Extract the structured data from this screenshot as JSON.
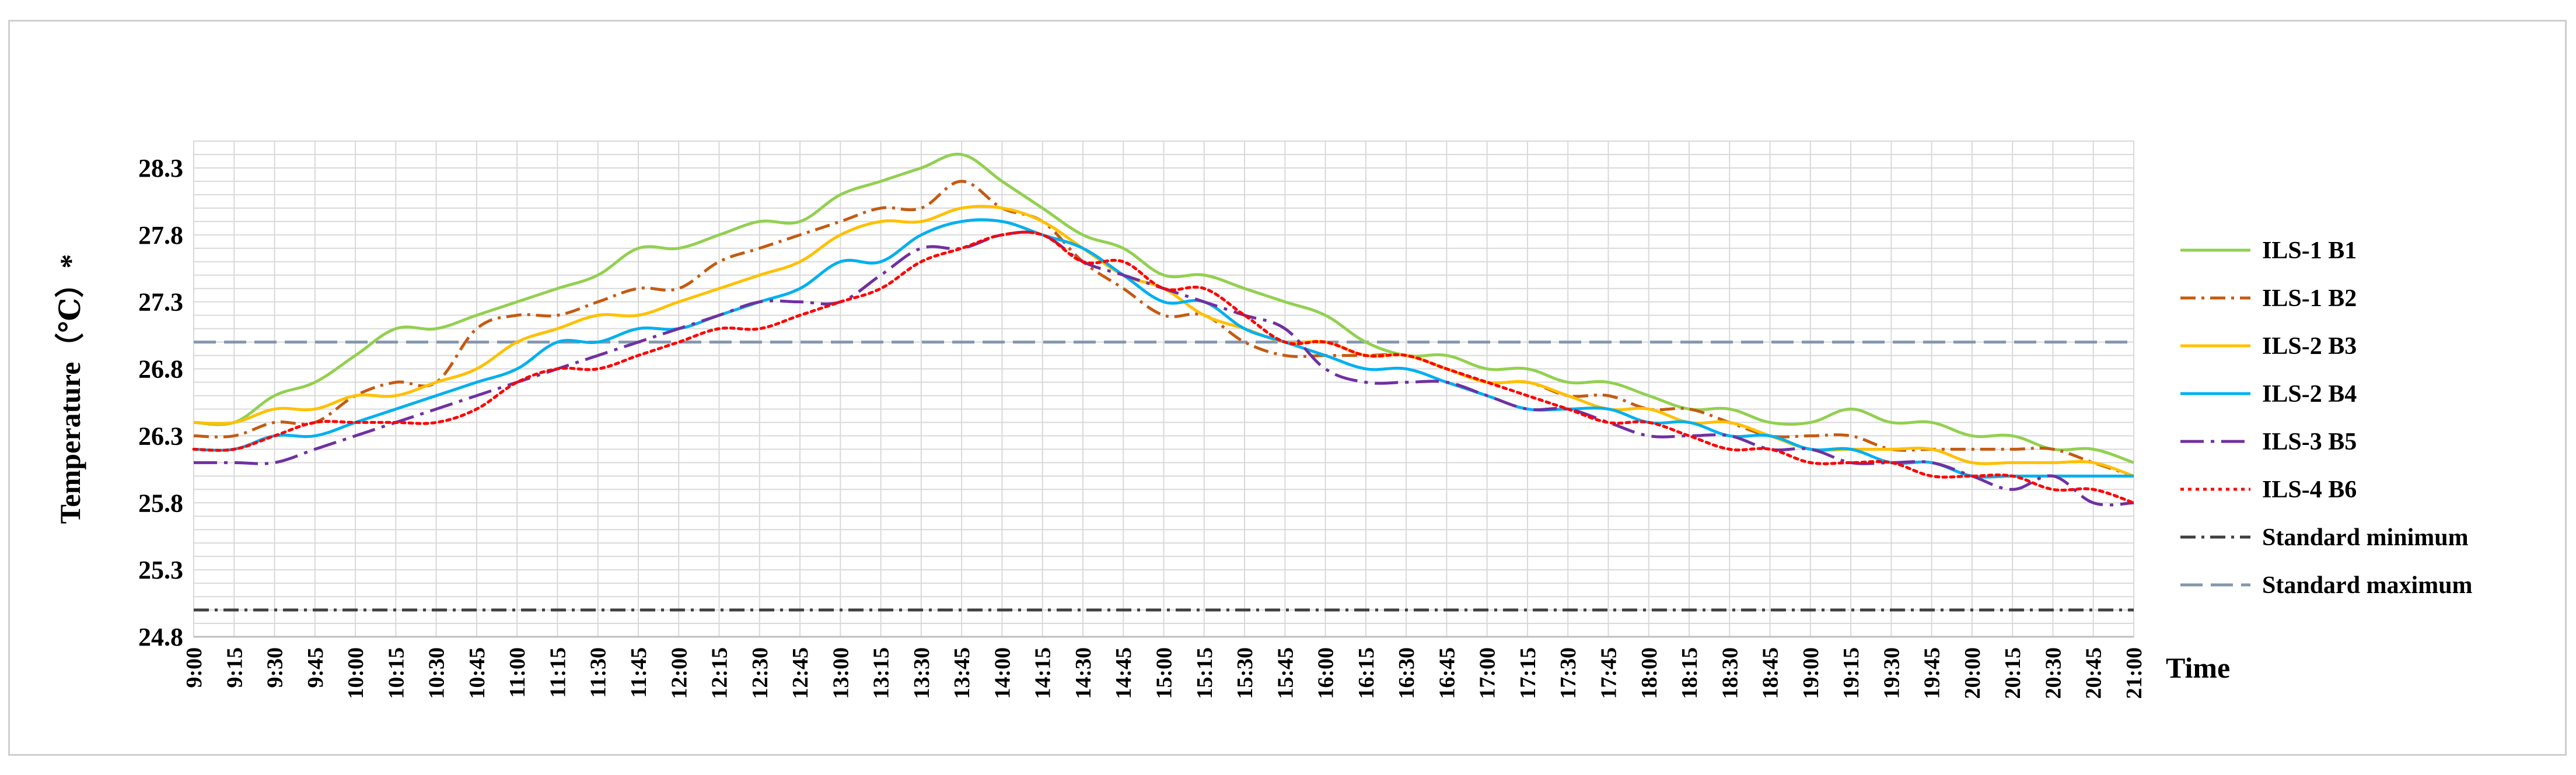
{
  "chart_data": {
    "type": "line",
    "title": "",
    "xlabel": "Time",
    "ylabel": "Temperature（℃）*",
    "ylim": [
      24.8,
      28.5
    ],
    "yticks": [
      "24.8",
      "25.3",
      "25.8",
      "26.3",
      "26.8",
      "27.3",
      "27.8",
      "28.3"
    ],
    "grid": true,
    "legend_position": "right",
    "categories": [
      "9:00",
      "9:15",
      "9:30",
      "9:45",
      "10:00",
      "10:15",
      "10:30",
      "10:45",
      "11:00",
      "11:15",
      "11:30",
      "11:45",
      "12:00",
      "12:15",
      "12:30",
      "12:45",
      "13:00",
      "13:15",
      "13:30",
      "13:45",
      "14:00",
      "14:15",
      "14:30",
      "14:45",
      "15:00",
      "15:15",
      "15:30",
      "15:45",
      "16:00",
      "16:15",
      "16:30",
      "16:45",
      "17:00",
      "17:15",
      "17:30",
      "17:45",
      "18:00",
      "18:15",
      "18:30",
      "18:45",
      "19:00",
      "19:15",
      "19:30",
      "19:45",
      "20:00",
      "20:15",
      "20:30",
      "20:45",
      "21:00"
    ],
    "series": [
      {
        "name": "ILS-1 B1",
        "color": "#92d050",
        "dash": "solid",
        "values": [
          26.4,
          26.4,
          26.6,
          26.7,
          26.9,
          27.1,
          27.1,
          27.2,
          27.3,
          27.4,
          27.5,
          27.7,
          27.7,
          27.8,
          27.9,
          27.9,
          28.1,
          28.2,
          28.3,
          28.4,
          28.2,
          28.0,
          27.8,
          27.7,
          27.5,
          27.5,
          27.4,
          27.3,
          27.2,
          27.0,
          26.9,
          26.9,
          26.8,
          26.8,
          26.7,
          26.7,
          26.6,
          26.5,
          26.5,
          26.4,
          26.4,
          26.5,
          26.4,
          26.4,
          26.3,
          26.3,
          26.2,
          26.2,
          26.1
        ]
      },
      {
        "name": "ILS-1 B2",
        "color": "#c55a11",
        "dash": "dashdot",
        "values": [
          26.3,
          26.3,
          26.4,
          26.4,
          26.6,
          26.7,
          26.7,
          27.1,
          27.2,
          27.2,
          27.3,
          27.4,
          27.4,
          27.6,
          27.7,
          27.8,
          27.9,
          28.0,
          28.0,
          28.2,
          28.0,
          27.9,
          27.6,
          27.4,
          27.2,
          27.2,
          27.0,
          26.9,
          26.9,
          26.9,
          26.9,
          26.8,
          26.7,
          26.7,
          26.6,
          26.6,
          26.5,
          26.5,
          26.4,
          26.3,
          26.3,
          26.3,
          26.2,
          26.2,
          26.2,
          26.2,
          26.2,
          26.1,
          26.0
        ]
      },
      {
        "name": "ILS-2 B3",
        "color": "#ffc000",
        "dash": "solid",
        "values": [
          26.4,
          26.4,
          26.5,
          26.5,
          26.6,
          26.6,
          26.7,
          26.8,
          27.0,
          27.1,
          27.2,
          27.2,
          27.3,
          27.4,
          27.5,
          27.6,
          27.8,
          27.9,
          27.9,
          28.0,
          28.0,
          27.9,
          27.7,
          27.5,
          27.4,
          27.2,
          27.1,
          27.0,
          27.0,
          26.9,
          26.9,
          26.8,
          26.7,
          26.7,
          26.6,
          26.5,
          26.5,
          26.4,
          26.4,
          26.3,
          26.2,
          26.2,
          26.2,
          26.2,
          26.1,
          26.1,
          26.1,
          26.1,
          26.0
        ]
      },
      {
        "name": "ILS-2 B4",
        "color": "#00b0f0",
        "dash": "solid",
        "values": [
          26.2,
          26.2,
          26.3,
          26.3,
          26.4,
          26.5,
          26.6,
          26.7,
          26.8,
          27.0,
          27.0,
          27.1,
          27.1,
          27.2,
          27.3,
          27.4,
          27.6,
          27.6,
          27.8,
          27.9,
          27.9,
          27.8,
          27.7,
          27.5,
          27.3,
          27.3,
          27.1,
          27.0,
          26.9,
          26.8,
          26.8,
          26.7,
          26.6,
          26.5,
          26.5,
          26.5,
          26.4,
          26.4,
          26.3,
          26.3,
          26.2,
          26.2,
          26.1,
          26.1,
          26.0,
          26.0,
          26.0,
          26.0,
          26.0
        ]
      },
      {
        "name": "ILS-3 B5",
        "color": "#7030a0",
        "dash": "longdashdot",
        "values": [
          26.1,
          26.1,
          26.1,
          26.2,
          26.3,
          26.4,
          26.5,
          26.6,
          26.7,
          26.8,
          26.9,
          27.0,
          27.1,
          27.2,
          27.3,
          27.3,
          27.3,
          27.5,
          27.7,
          27.7,
          27.8,
          27.8,
          27.6,
          27.5,
          27.4,
          27.3,
          27.2,
          27.1,
          26.8,
          26.7,
          26.7,
          26.7,
          26.6,
          26.5,
          26.5,
          26.4,
          26.3,
          26.3,
          26.3,
          26.2,
          26.2,
          26.1,
          26.1,
          26.1,
          26.0,
          25.9,
          26.0,
          25.8,
          25.8
        ]
      },
      {
        "name": "ILS-4 B6",
        "color": "#ff0000",
        "dash": "dotted",
        "values": [
          26.2,
          26.2,
          26.3,
          26.4,
          26.4,
          26.4,
          26.4,
          26.5,
          26.7,
          26.8,
          26.8,
          26.9,
          27.0,
          27.1,
          27.1,
          27.2,
          27.3,
          27.4,
          27.6,
          27.7,
          27.8,
          27.8,
          27.6,
          27.6,
          27.4,
          27.4,
          27.2,
          27.0,
          27.0,
          26.9,
          26.9,
          26.8,
          26.7,
          26.6,
          26.5,
          26.4,
          26.4,
          26.3,
          26.2,
          26.2,
          26.1,
          26.1,
          26.1,
          26.0,
          26.0,
          26.0,
          25.9,
          25.9,
          25.8
        ]
      }
    ],
    "reference_lines": [
      {
        "name": "Standard minimum",
        "value": 25.0,
        "color": "#404040",
        "dash": "dashdot"
      },
      {
        "name": "Standard maximum",
        "value": 27.0,
        "color": "#8497b0",
        "dash": "longdash"
      }
    ]
  }
}
